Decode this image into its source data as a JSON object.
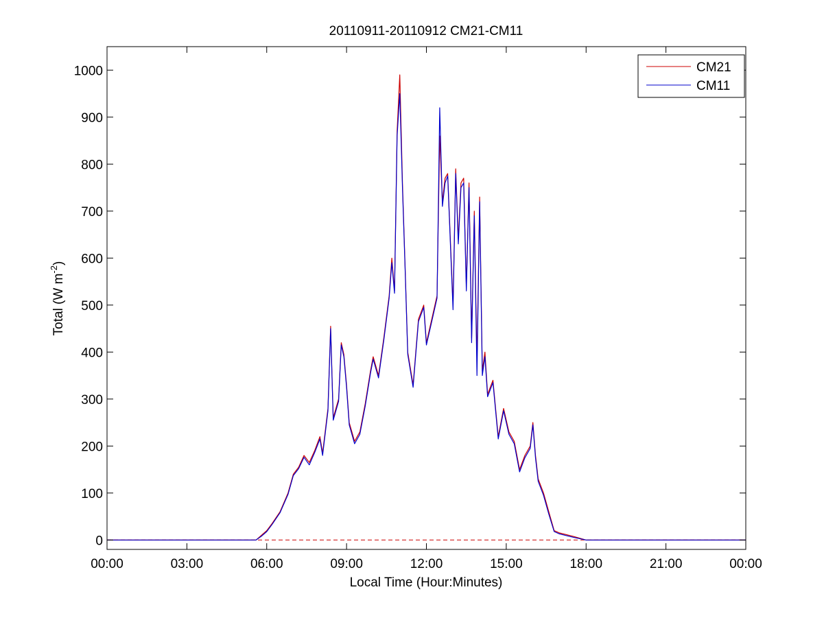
{
  "chart_data": {
    "type": "line",
    "title": "20110911-20110912 CM21-CM11",
    "xlabel": "Local Time (Hour:Minutes)",
    "ylabel_main": "Total (W m",
    "ylabel_sup": "-2",
    "ylabel_close": ")",
    "xlim": [
      0,
      24
    ],
    "ylim": [
      -20,
      1050
    ],
    "x_ticks": [
      0,
      3,
      6,
      9,
      12,
      15,
      18,
      21,
      24
    ],
    "x_tick_labels": [
      "00:00",
      "03:00",
      "06:00",
      "09:00",
      "12:00",
      "15:00",
      "18:00",
      "21:00",
      "00:00"
    ],
    "y_ticks": [
      0,
      100,
      200,
      300,
      400,
      500,
      600,
      700,
      800,
      900,
      1000
    ],
    "y_tick_labels": [
      "0",
      "100",
      "200",
      "300",
      "400",
      "500",
      "600",
      "700",
      "800",
      "900",
      "1000"
    ],
    "legend": "top-right",
    "grid": false,
    "baseline": {
      "y": 0,
      "style": "dashed",
      "color": "#cc0000"
    },
    "series": [
      {
        "name": "CM21",
        "color": "#cc0000",
        "x": [
          0,
          5.6,
          5.8,
          6.0,
          6.2,
          6.5,
          6.8,
          7.0,
          7.2,
          7.4,
          7.6,
          7.8,
          8.0,
          8.1,
          8.3,
          8.4,
          8.5,
          8.7,
          8.8,
          8.9,
          9.0,
          9.1,
          9.3,
          9.5,
          9.7,
          9.9,
          10.0,
          10.2,
          10.4,
          10.6,
          10.7,
          10.8,
          10.9,
          11.0,
          11.1,
          11.2,
          11.3,
          11.5,
          11.7,
          11.9,
          12.0,
          12.2,
          12.4,
          12.5,
          12.6,
          12.7,
          12.8,
          13.0,
          13.1,
          13.2,
          13.3,
          13.4,
          13.5,
          13.6,
          13.7,
          13.8,
          13.9,
          14.0,
          14.1,
          14.2,
          14.3,
          14.5,
          14.7,
          14.9,
          15.1,
          15.3,
          15.5,
          15.7,
          15.9,
          16.0,
          16.1,
          16.2,
          16.4,
          16.6,
          16.8,
          17.0,
          17.5,
          18.0,
          18.2,
          24
        ],
        "y": [
          0,
          0,
          10,
          20,
          35,
          60,
          100,
          140,
          155,
          180,
          165,
          190,
          220,
          185,
          280,
          455,
          260,
          300,
          420,
          395,
          330,
          250,
          210,
          230,
          290,
          360,
          390,
          350,
          430,
          520,
          600,
          530,
          870,
          990,
          760,
          580,
          400,
          330,
          470,
          500,
          420,
          470,
          520,
          860,
          720,
          770,
          780,
          500,
          790,
          640,
          760,
          770,
          540,
          760,
          430,
          700,
          380,
          730,
          360,
          400,
          310,
          340,
          220,
          280,
          230,
          210,
          150,
          180,
          200,
          250,
          180,
          130,
          100,
          60,
          20,
          15,
          8,
          0,
          0,
          0
        ]
      },
      {
        "name": "CM11",
        "color": "#0000cc",
        "x": [
          0,
          5.6,
          5.8,
          6.0,
          6.2,
          6.5,
          6.8,
          7.0,
          7.2,
          7.4,
          7.6,
          7.8,
          8.0,
          8.1,
          8.3,
          8.4,
          8.5,
          8.7,
          8.8,
          8.9,
          9.0,
          9.1,
          9.3,
          9.5,
          9.7,
          9.9,
          10.0,
          10.2,
          10.4,
          10.6,
          10.7,
          10.8,
          10.9,
          11.0,
          11.1,
          11.2,
          11.3,
          11.5,
          11.7,
          11.9,
          12.0,
          12.2,
          12.4,
          12.5,
          12.6,
          12.7,
          12.8,
          13.0,
          13.1,
          13.2,
          13.3,
          13.4,
          13.5,
          13.6,
          13.7,
          13.8,
          13.9,
          14.0,
          14.1,
          14.2,
          14.3,
          14.5,
          14.7,
          14.9,
          15.1,
          15.3,
          15.5,
          15.7,
          15.9,
          16.0,
          16.1,
          16.2,
          16.4,
          16.6,
          16.8,
          17.0,
          17.5,
          18.0,
          18.2,
          24
        ],
        "y": [
          0,
          0,
          8,
          18,
          33,
          58,
          97,
          137,
          152,
          176,
          160,
          186,
          215,
          180,
          275,
          450,
          255,
          295,
          415,
          390,
          325,
          245,
          205,
          225,
          285,
          355,
          385,
          345,
          425,
          515,
          590,
          525,
          860,
          950,
          750,
          575,
          395,
          325,
          465,
          495,
          415,
          465,
          515,
          920,
          710,
          760,
          775,
          490,
          780,
          630,
          750,
          760,
          530,
          750,
          420,
          690,
          350,
          720,
          350,
          390,
          305,
          335,
          215,
          275,
          225,
          205,
          145,
          175,
          195,
          245,
          175,
          125,
          95,
          55,
          18,
          13,
          6,
          0,
          0,
          0
        ]
      }
    ]
  }
}
